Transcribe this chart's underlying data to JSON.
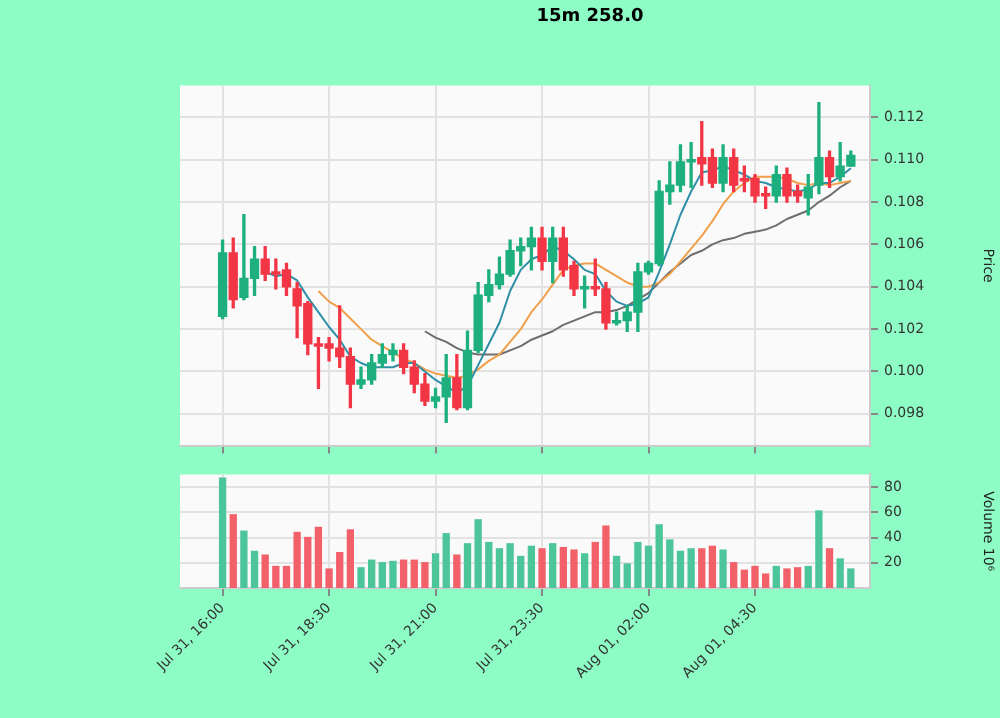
{
  "chart_data": [
    {
      "type": "candlestick",
      "title": "15m 258.0",
      "ylabel": "Price",
      "grid": true,
      "tick_labels": "y",
      "categories": [
        null,
        null,
        null,
        null,
        null,
        null,
        null,
        null,
        null,
        null,
        null,
        null,
        null,
        null,
        null,
        null,
        null,
        null,
        null,
        null,
        null,
        null,
        null,
        null,
        null,
        null,
        null,
        null,
        null,
        null,
        null,
        null,
        null,
        null,
        null,
        null,
        null,
        null,
        null,
        null,
        null,
        null,
        null,
        null,
        null,
        null,
        null,
        null,
        null,
        null,
        null,
        null,
        null,
        null,
        null,
        null,
        null,
        null,
        null,
        null
      ],
      "ylim": [
        0.0965,
        0.1135
      ],
      "yticks": [
        0.098,
        {
          "value": 0.1,
          "label": "0.100"
        },
        0.102,
        0.104,
        0.106,
        0.108,
        {
          "value": 0.11,
          "label": "0.110"
        },
        0.112
      ],
      "ohlc": [
        [
          0.1026,
          0.1062,
          0.1025,
          0.1056
        ],
        [
          0.1056,
          0.1063,
          0.103,
          0.1034
        ],
        [
          0.1035,
          0.1074,
          0.1034,
          0.1044
        ],
        [
          0.1044,
          0.1059,
          0.1036,
          0.1053
        ],
        [
          0.1053,
          0.1059,
          0.1043,
          0.1046
        ],
        [
          0.1047,
          0.1053,
          0.1039,
          0.1046
        ],
        [
          0.1048,
          0.1051,
          0.1036,
          0.104
        ],
        [
          0.1039,
          0.1042,
          0.1016,
          0.1031
        ],
        [
          0.1032,
          0.1033,
          0.1008,
          0.1013
        ],
        [
          0.1013,
          0.1016,
          0.0992,
          0.1012
        ],
        [
          0.1013,
          0.1016,
          0.1005,
          0.1011
        ],
        [
          0.1011,
          0.1031,
          0.1002,
          0.1007
        ],
        [
          0.1007,
          0.1011,
          0.0983,
          0.0994
        ],
        [
          0.0994,
          0.1002,
          0.0992,
          0.0996
        ],
        [
          0.0996,
          0.1008,
          0.0994,
          0.1004
        ],
        [
          0.1004,
          0.1013,
          0.1002,
          0.1008
        ],
        [
          0.1008,
          0.1013,
          0.1005,
          0.101
        ],
        [
          0.101,
          0.1013,
          0.0999,
          0.1002
        ],
        [
          0.1002,
          0.1005,
          0.099,
          0.0994
        ],
        [
          0.0994,
          0.0999,
          0.0984,
          0.0986
        ],
        [
          0.0986,
          0.0992,
          0.0983,
          0.0988
        ],
        [
          0.0988,
          0.1008,
          0.0976,
          0.0997
        ],
        [
          0.0997,
          0.1008,
          0.0982,
          0.0983
        ],
        [
          0.0983,
          0.1019,
          0.0982,
          0.101
        ],
        [
          0.101,
          0.1042,
          0.1009,
          0.1036
        ],
        [
          0.1036,
          0.1048,
          0.1033,
          0.1041
        ],
        [
          0.1041,
          0.1054,
          0.1039,
          0.1046
        ],
        [
          0.1046,
          0.1062,
          0.1045,
          0.1057
        ],
        [
          0.1057,
          0.1063,
          0.105,
          0.1059
        ],
        [
          0.1059,
          0.1068,
          0.1048,
          0.1063
        ],
        [
          0.1063,
          0.1068,
          0.1048,
          0.1052
        ],
        [
          0.1052,
          0.1068,
          0.1042,
          0.1063
        ],
        [
          0.1063,
          0.1068,
          0.1045,
          0.1048
        ],
        [
          0.105,
          0.1052,
          0.1036,
          0.1039
        ],
        [
          0.1039,
          0.1045,
          0.103,
          0.104
        ],
        [
          0.104,
          0.1053,
          0.1036,
          0.1039
        ],
        [
          0.1039,
          0.1042,
          0.102,
          0.1023
        ],
        [
          0.1023,
          0.1028,
          0.1022,
          0.1024
        ],
        [
          0.1024,
          0.1031,
          0.1019,
          0.1028
        ],
        [
          0.1028,
          0.1051,
          0.1019,
          0.1047
        ],
        [
          0.1047,
          0.1052,
          0.1046,
          0.1051
        ],
        [
          0.1051,
          0.109,
          0.105,
          0.1085
        ],
        [
          0.1085,
          0.1099,
          0.1079,
          0.1088
        ],
        [
          0.1088,
          0.1107,
          0.1085,
          0.1099
        ],
        [
          0.1099,
          0.1108,
          0.1087,
          0.11
        ],
        [
          0.1101,
          0.1118,
          0.1088,
          0.1098
        ],
        [
          0.1101,
          0.1105,
          0.1087,
          0.1089
        ],
        [
          0.1089,
          0.1107,
          0.1085,
          0.1101
        ],
        [
          0.1101,
          0.1105,
          0.1085,
          0.1088
        ],
        [
          0.1091,
          0.1097,
          0.1085,
          0.109
        ],
        [
          0.1091,
          0.1093,
          0.108,
          0.1083
        ],
        [
          0.1084,
          0.1087,
          0.1077,
          0.1083
        ],
        [
          0.1083,
          0.1097,
          0.108,
          0.1093
        ],
        [
          0.1093,
          0.1096,
          0.108,
          0.1083
        ],
        [
          0.1085,
          0.1088,
          0.108,
          0.1083
        ],
        [
          0.1082,
          0.1093,
          0.1074,
          0.1087
        ],
        [
          0.1088,
          0.1127,
          0.1084,
          0.1101
        ],
        [
          0.1101,
          0.1104,
          0.1087,
          0.1092
        ],
        [
          0.1092,
          0.1108,
          0.109,
          0.1097
        ],
        [
          0.1097,
          0.1104,
          0.1097,
          0.1102
        ]
      ],
      "colors": [
        "#1db07e",
        "#f23645",
        "#1db07e",
        "#1db07e",
        "#f23645",
        "#f23645",
        "#f23645",
        "#f23645",
        "#f23645",
        "#f23645",
        "#f23645",
        "#f23645",
        "#f23645",
        "#1db07e",
        "#1db07e",
        "#1db07e",
        "#1db07e",
        "#f23645",
        "#f23645",
        "#f23645",
        "#1db07e",
        "#1db07e",
        "#f23645",
        "#1db07e",
        "#1db07e",
        "#1db07e",
        "#1db07e",
        "#1db07e",
        "#1db07e",
        "#1db07e",
        "#f23645",
        "#1db07e",
        "#f23645",
        "#f23645",
        "#1db07e",
        "#f23645",
        "#f23645",
        "#1db07e",
        "#1db07e",
        "#1db07e",
        "#1db07e",
        "#1db07e",
        "#1db07e",
        "#1db07e",
        "#1db07e",
        "#f23645",
        "#f23645",
        "#1db07e",
        "#f23645",
        "#f23645",
        "#f23645",
        "#f23645",
        "#1db07e",
        "#f23645",
        "#f23645",
        "#1db07e",
        "#1db07e",
        "#f23645",
        "#1db07e",
        "#1db07e"
      ],
      "series": [
        {
          "type": "line",
          "color": "#2e8fa6",
          "values": [
            null,
            null,
            null,
            null,
            0.1047,
            0.1045,
            0.1046,
            0.1043,
            0.1035,
            0.1028,
            0.1021,
            0.1015,
            0.1007,
            0.1004,
            0.1002,
            0.1002,
            0.1002,
            0.1004,
            0.1004,
            0.1,
            0.0996,
            0.0993,
            0.099,
            0.0993,
            0.1003,
            0.1013,
            0.1023,
            0.1038,
            0.1048,
            0.1053,
            0.1055,
            0.1059,
            0.1057,
            0.1053,
            0.1048,
            0.1046,
            0.1038,
            0.1033,
            0.1031,
            0.1032,
            0.1035,
            0.1047,
            0.106,
            0.1074,
            0.1085,
            0.1094,
            0.1095,
            0.1097,
            0.1095,
            0.1093,
            0.109,
            0.1089,
            0.1087,
            0.1086,
            0.1085,
            0.1086,
            0.1089,
            0.1089,
            0.1092,
            0.1096
          ]
        },
        {
          "type": "line",
          "color": "#f0a04b",
          "values": [
            null,
            null,
            null,
            null,
            null,
            null,
            null,
            null,
            null,
            0.1038,
            0.1033,
            0.103,
            0.1025,
            0.102,
            0.1015,
            0.1012,
            0.1009,
            0.1006,
            0.1004,
            0.1001,
            0.0999,
            0.0998,
            0.0997,
            0.0998,
            0.1001,
            0.1005,
            0.1008,
            0.1014,
            0.102,
            0.1028,
            0.1034,
            0.1041,
            0.1048,
            0.105,
            0.1051,
            0.1051,
            0.1048,
            0.1045,
            0.1042,
            0.104,
            0.104,
            0.1042,
            0.1046,
            0.1052,
            0.1058,
            0.1064,
            0.1071,
            0.1079,
            0.1085,
            0.1089,
            0.1092,
            0.1092,
            0.1092,
            0.1091,
            0.1089,
            0.1088,
            0.1089,
            0.1088,
            0.1089,
            0.109
          ]
        },
        {
          "type": "line",
          "color": "#6e6e6e",
          "values": [
            null,
            null,
            null,
            null,
            null,
            null,
            null,
            null,
            null,
            null,
            null,
            null,
            null,
            null,
            null,
            null,
            null,
            null,
            null,
            0.1019,
            0.1016,
            0.1014,
            0.1011,
            0.1009,
            0.1008,
            0.1008,
            0.1008,
            0.101,
            0.1012,
            0.1015,
            0.1017,
            0.1019,
            0.1022,
            0.1024,
            0.1026,
            0.1028,
            0.1028,
            0.1029,
            0.1031,
            0.1034,
            0.1037,
            0.1042,
            0.1047,
            0.1051,
            0.1055,
            0.1057,
            0.106,
            0.1062,
            0.1063,
            0.1065,
            0.1066,
            0.1067,
            0.1069,
            0.1072,
            0.1074,
            0.1076,
            0.108,
            0.1083,
            0.1087,
            0.109
          ]
        }
      ]
    },
    {
      "type": "bar",
      "ylabel": "Volume 10⁶",
      "grid": true,
      "categories": [
        "Jul 31, 16:00",
        null,
        null,
        null,
        null,
        null,
        null,
        null,
        null,
        null,
        "Jul 31, 18:30",
        null,
        null,
        null,
        null,
        null,
        null,
        null,
        null,
        null,
        "Jul 31, 21:00",
        null,
        null,
        null,
        null,
        null,
        null,
        null,
        null,
        null,
        "Jul 31, 23:30",
        null,
        null,
        null,
        null,
        null,
        null,
        null,
        null,
        null,
        "Aug 01, 02:00",
        null,
        null,
        null,
        null,
        null,
        null,
        null,
        null,
        null,
        "Aug 01, 04:30",
        null,
        null,
        null,
        null,
        null,
        null,
        null,
        null,
        null
      ],
      "ylim": [
        0,
        90
      ],
      "yticks": [
        20,
        40,
        60,
        80
      ],
      "values": [
        87,
        58,
        45,
        29,
        26,
        17,
        17,
        44,
        40,
        48,
        15,
        28,
        46,
        16,
        22,
        20,
        21,
        22,
        22,
        20,
        27,
        43,
        26,
        35,
        54,
        36,
        31,
        35,
        25,
        33,
        31,
        35,
        32,
        30,
        27,
        36,
        49,
        25,
        19,
        36,
        33,
        50,
        38,
        29,
        31,
        31,
        33,
        30,
        20,
        14,
        17,
        11,
        17,
        15,
        16,
        17,
        61,
        31,
        23,
        15
      ],
      "colors": [
        "#4cc59b",
        "#f2606a",
        "#4cc59b",
        "#4cc59b",
        "#f2606a",
        "#f2606a",
        "#f2606a",
        "#f2606a",
        "#f2606a",
        "#f2606a",
        "#f2606a",
        "#f2606a",
        "#f2606a",
        "#4cc59b",
        "#4cc59b",
        "#4cc59b",
        "#4cc59b",
        "#f2606a",
        "#f2606a",
        "#f2606a",
        "#4cc59b",
        "#4cc59b",
        "#f2606a",
        "#4cc59b",
        "#4cc59b",
        "#4cc59b",
        "#4cc59b",
        "#4cc59b",
        "#4cc59b",
        "#4cc59b",
        "#f2606a",
        "#4cc59b",
        "#f2606a",
        "#f2606a",
        "#4cc59b",
        "#f2606a",
        "#f2606a",
        "#4cc59b",
        "#4cc59b",
        "#4cc59b",
        "#4cc59b",
        "#4cc59b",
        "#4cc59b",
        "#4cc59b",
        "#4cc59b",
        "#f2606a",
        "#f2606a",
        "#4cc59b",
        "#f2606a",
        "#f2606a",
        "#f2606a",
        "#f2606a",
        "#4cc59b",
        "#f2606a",
        "#f2606a",
        "#4cc59b",
        "#4cc59b",
        "#f2606a",
        "#4cc59b",
        "#4cc59b"
      ]
    }
  ]
}
